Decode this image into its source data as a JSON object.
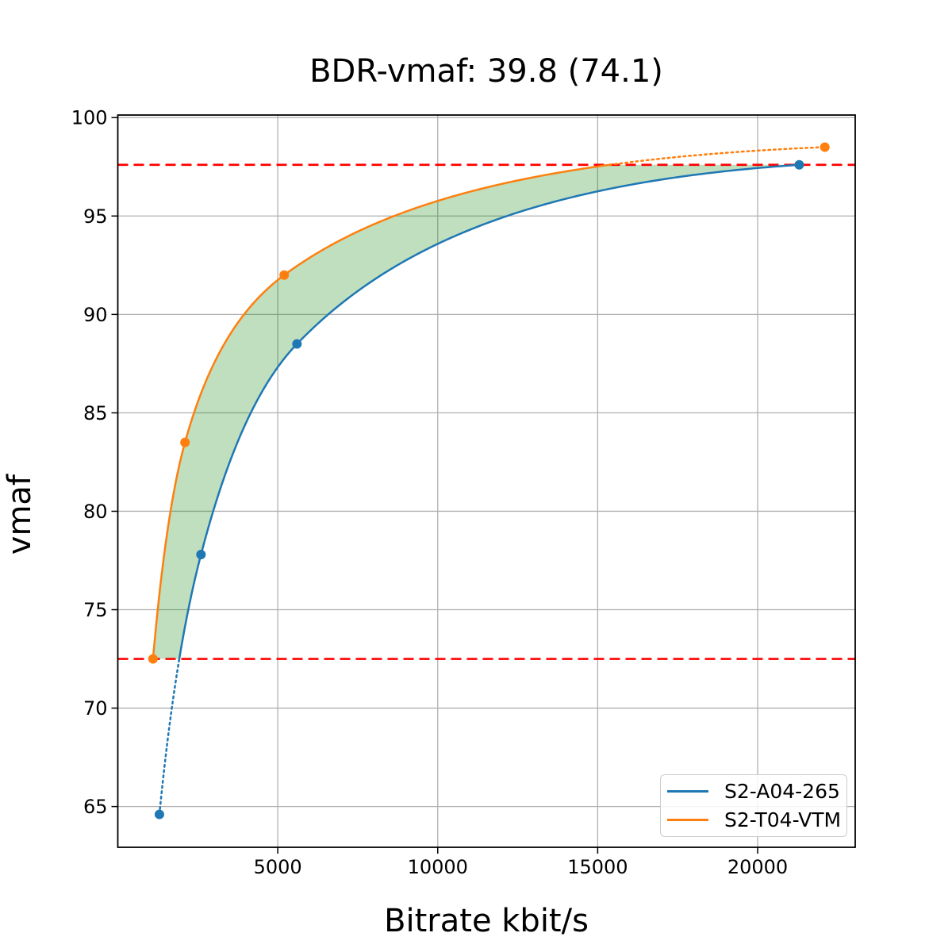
{
  "title": "BDR-vmaf: 39.8 (74.1)",
  "chart_data": {
    "type": "line",
    "title": "BDR-vmaf: 39.8 (74.1)",
    "xlabel": "Bitrate kbit/s",
    "ylabel": "vmaf",
    "xlim": [
      0,
      23050
    ],
    "ylim": [
      62.93,
      100.13
    ],
    "xticks": [
      5000,
      10000,
      15000,
      20000
    ],
    "yticks": [
      65,
      70,
      75,
      80,
      85,
      90,
      95,
      100
    ],
    "grid": true,
    "grid_color": "#b0b0b0",
    "interpolation": "pchip-log-x",
    "legend_position": "lower right",
    "series": [
      {
        "name": "S2-A04-265",
        "color": "#1f77b4",
        "x": [
          1300,
          2600,
          5600,
          21300
        ],
        "y": [
          64.6,
          77.8,
          88.5,
          97.6
        ]
      },
      {
        "name": "S2-T04-VTM",
        "color": "#ff7f0e",
        "x": [
          1100,
          2100,
          5200,
          22100
        ],
        "y": [
          72.5,
          83.5,
          92.0,
          98.5
        ]
      }
    ],
    "reference_lines": [
      {
        "y": 97.6,
        "color": "#ff0000",
        "style": "dashed"
      },
      {
        "y": 72.5,
        "color": "#ff0000",
        "style": "dashed"
      }
    ],
    "fill_between": {
      "color": "#008000",
      "opacity": 0.25,
      "y_range": [
        72.5,
        97.6
      ]
    }
  }
}
